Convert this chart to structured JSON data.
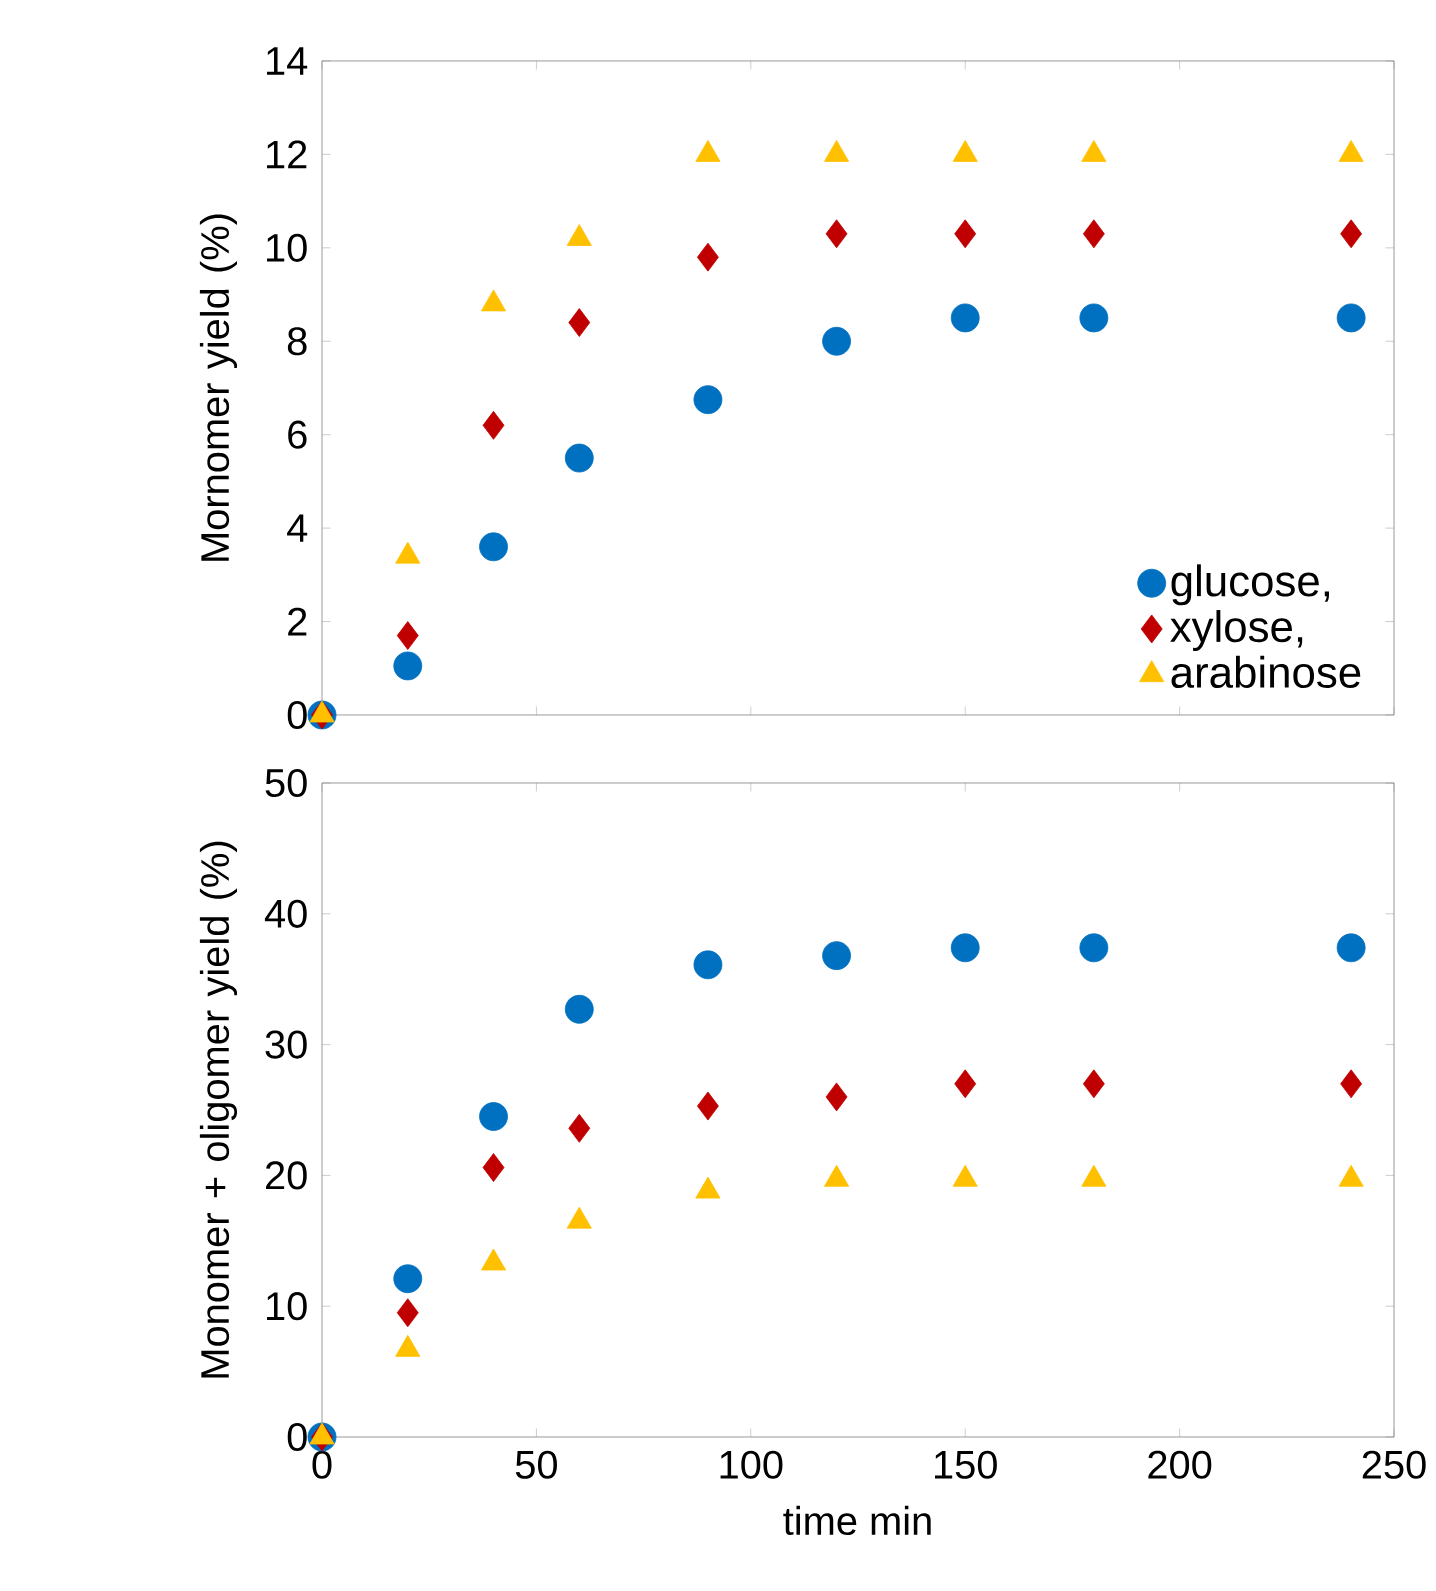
{
  "chart_data": [
    {
      "type": "scatter",
      "ylabel": "Mornomer yield (%)",
      "x": [
        0,
        20,
        40,
        60,
        90,
        120,
        150,
        180,
        240
      ],
      "xlim": [
        0,
        250
      ],
      "xticks": [
        0,
        50,
        100,
        150,
        200,
        250
      ],
      "ylim": [
        0,
        14
      ],
      "yticks": [
        0,
        2,
        4,
        6,
        8,
        10,
        12,
        14
      ],
      "tick_labels": "y",
      "grid": false,
      "legend": "bottom right",
      "series": [
        {
          "name": "glucose,",
          "color": "#0070c0",
          "marker": "circle",
          "values": [
            0,
            1.05,
            3.6,
            5.5,
            6.75,
            8.0,
            8.5,
            8.5,
            8.5
          ]
        },
        {
          "name": "xylose,",
          "color": "#c00000",
          "marker": "diamond",
          "values": [
            0,
            1.7,
            6.2,
            8.4,
            9.8,
            10.3,
            10.3,
            10.3,
            10.3
          ]
        },
        {
          "name": "arabinose",
          "color": "#ffc000",
          "marker": "triangle",
          "values": [
            0,
            3.4,
            8.8,
            10.2,
            12.0,
            12.0,
            12.0,
            12.0,
            12.0
          ]
        }
      ]
    },
    {
      "type": "scatter",
      "xlabel": "time min",
      "ylabel": "Monomer + oligomer yield (%)",
      "x": [
        0,
        20,
        40,
        60,
        90,
        120,
        150,
        180,
        240
      ],
      "xlim": [
        0,
        250
      ],
      "xticks": [
        0,
        50,
        100,
        150,
        200,
        250
      ],
      "ylim": [
        0,
        50
      ],
      "yticks": [
        0,
        10,
        20,
        30,
        40,
        50
      ],
      "grid": false,
      "series": [
        {
          "color": "#0070c0",
          "marker": "circle",
          "values": [
            0,
            12.1,
            24.5,
            32.7,
            36.1,
            36.8,
            37.4,
            37.4,
            37.4
          ]
        },
        {
          "color": "#c00000",
          "marker": "diamond",
          "values": [
            0,
            9.5,
            20.6,
            23.6,
            25.3,
            26.0,
            27.0,
            27.0,
            27.0
          ]
        },
        {
          "color": "#ffc000",
          "marker": "triangle",
          "values": [
            0,
            6.7,
            13.3,
            16.5,
            18.8,
            19.7,
            19.7,
            19.7,
            19.7
          ]
        }
      ]
    }
  ]
}
